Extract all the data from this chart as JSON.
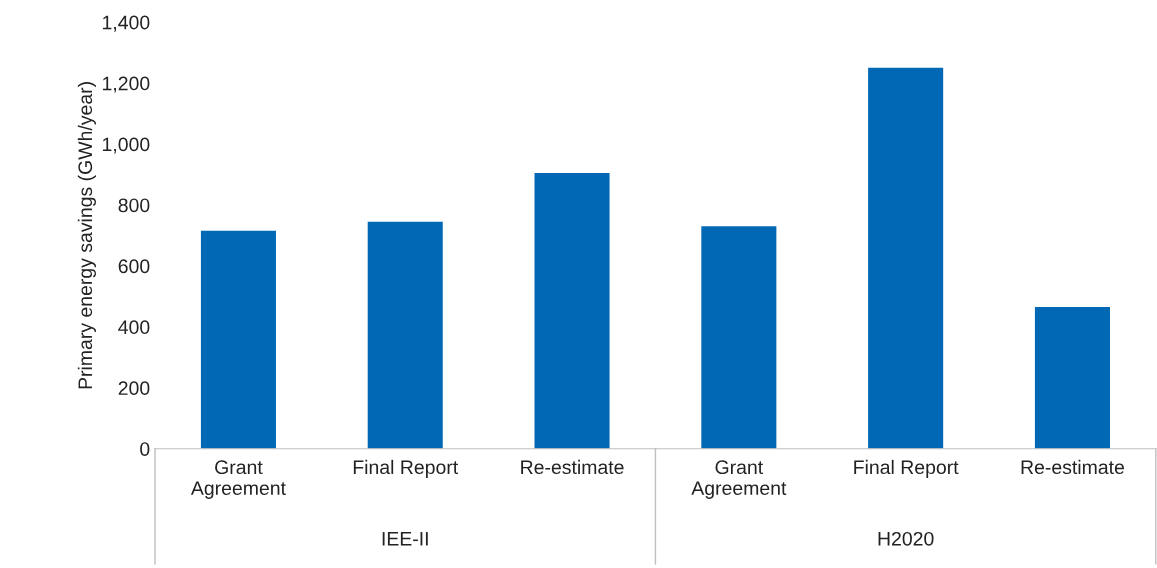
{
  "chart_data": {
    "type": "bar",
    "ylabel": "Primary energy savings (GWh/year)",
    "categories": [
      "Grant\nAgreement",
      "Final Report",
      "Re-estimate",
      "Grant\nAgreement",
      "Final Report",
      "Re-estimate"
    ],
    "values": [
      715,
      745,
      905,
      730,
      1250,
      465
    ],
    "color": "#0068b5",
    "ylim": [
      0,
      1400
    ],
    "yticks": [
      0,
      200,
      400,
      600,
      800,
      {
        "value": 1000,
        "label": "1,000"
      },
      {
        "value": 1200,
        "label": "1,200"
      },
      {
        "value": 1400,
        "label": "1,400"
      }
    ],
    "annotations": [
      "IEE-II",
      "H2020"
    ],
    "grid": false,
    "legend": false
  }
}
